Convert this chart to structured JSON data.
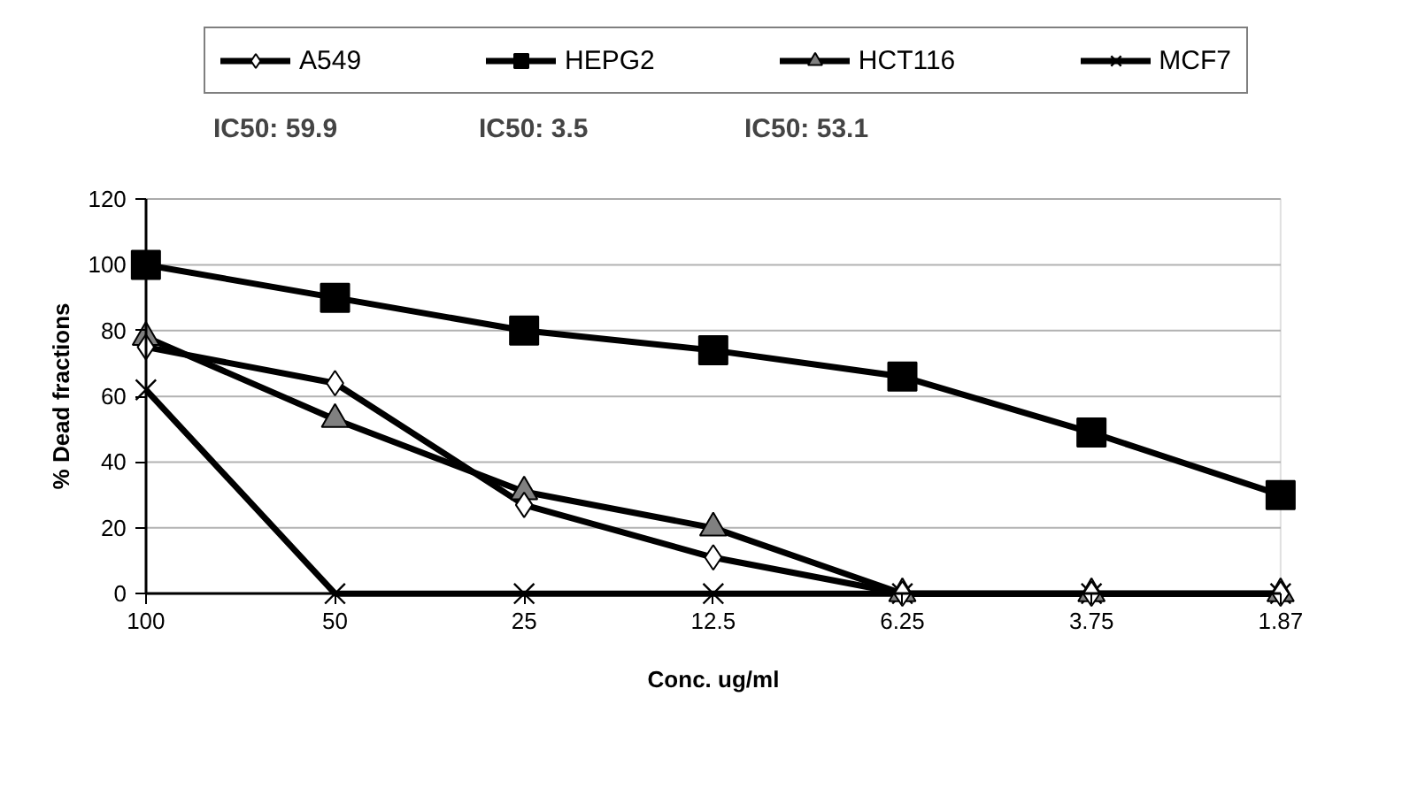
{
  "chart_data": {
    "type": "line",
    "xlabel": "Conc. ug/ml",
    "ylabel": "% Dead fractions",
    "categories": [
      "100",
      "50",
      "25",
      "12.5",
      "6.25",
      "3.75",
      "1.87"
    ],
    "series": [
      {
        "name": "A549",
        "color": "#000000",
        "marker": "diamond",
        "values": [
          75,
          64,
          27,
          11,
          0,
          0,
          0
        ]
      },
      {
        "name": "HEPG2",
        "color": "#000000",
        "marker": "square",
        "values": [
          100,
          90,
          80,
          74,
          66,
          49,
          30
        ]
      },
      {
        "name": "HCT116",
        "color": "#000000",
        "marker": "triangle",
        "values": [
          78,
          53,
          31,
          20,
          0,
          0,
          0
        ]
      },
      {
        "name": "MCF7",
        "color": "#000000",
        "marker": "cross",
        "values": [
          62,
          0,
          0,
          0,
          0,
          0,
          0
        ]
      }
    ],
    "ylim": [
      0,
      120
    ],
    "yticks": [
      0,
      20,
      40,
      60,
      80,
      100,
      120
    ],
    "grid": "y",
    "legend": "top",
    "annotations": [
      "IC50: 59.9",
      "IC50: 3.5",
      "IC50: 53.1"
    ]
  }
}
